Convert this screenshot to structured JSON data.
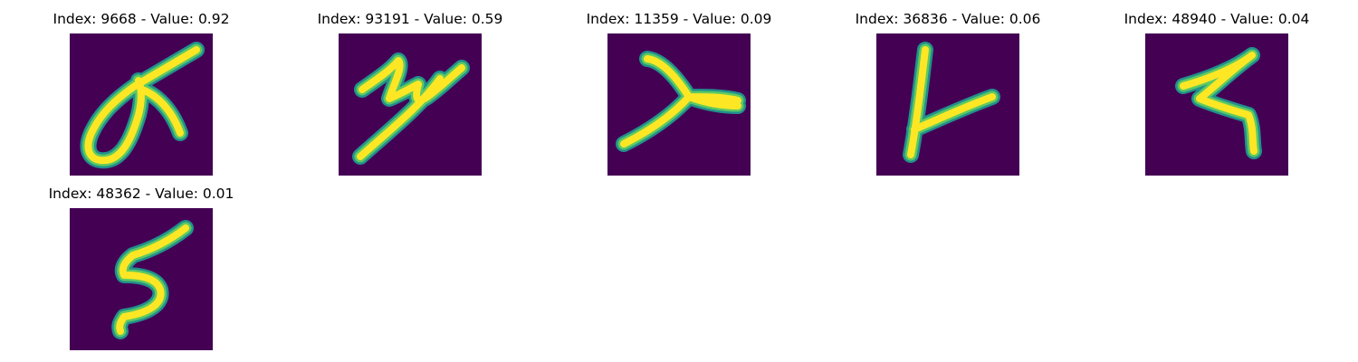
{
  "colors": {
    "background": "#440154",
    "stroke_core": "#fde725",
    "stroke_mid": "#5ec962",
    "stroke_edge": "#21918c"
  },
  "panels": [
    {
      "index": "9668",
      "value": "0.92",
      "title": "Index: 9668 - Value: 0.92",
      "glyph": "loop-with-crossbar"
    },
    {
      "index": "93191",
      "value": "0.59",
      "title": "Index: 93191 - Value: 0.59",
      "glyph": "slanted-z"
    },
    {
      "index": "11359",
      "value": "0.09",
      "title": "Index: 11359 - Value: 0.09",
      "glyph": "sideways-y"
    },
    {
      "index": "36836",
      "value": "0.06",
      "title": "Index: 36836 - Value: 0.06",
      "glyph": "upright-v"
    },
    {
      "index": "48940",
      "value": "0.04",
      "title": "Index: 48940 - Value: 0.04",
      "glyph": "zigzag-four"
    },
    {
      "index": "48362",
      "value": "0.01",
      "title": "Index: 48362 - Value: 0.01",
      "glyph": "hooked-five"
    }
  ]
}
